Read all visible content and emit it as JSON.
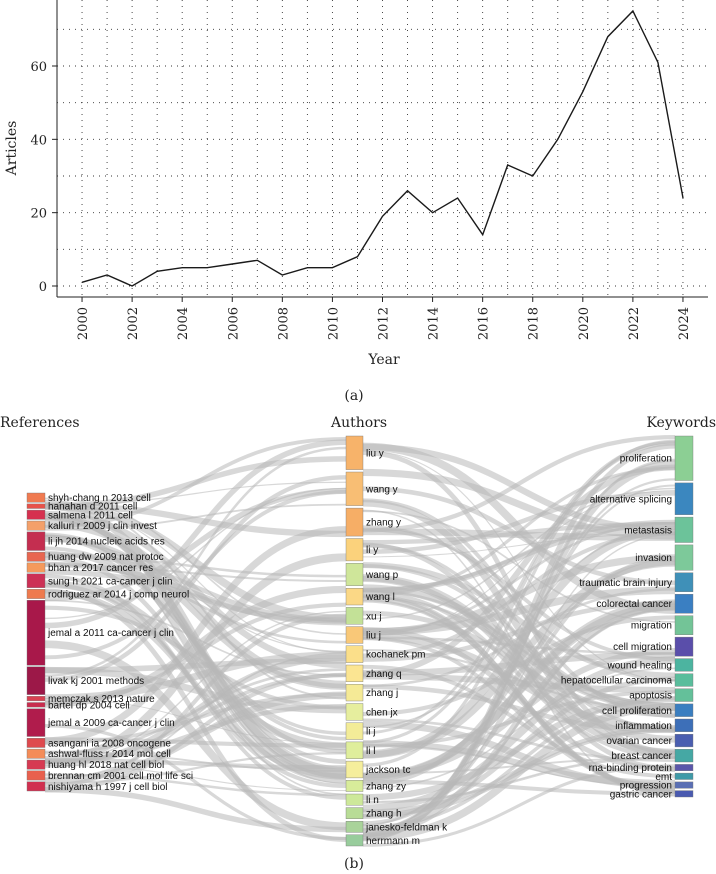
{
  "panel_a": {
    "caption": "(a)",
    "chart_data": {
      "type": "line",
      "x": [
        2000,
        2001,
        2002,
        2003,
        2004,
        2005,
        2006,
        2007,
        2008,
        2009,
        2010,
        2011,
        2012,
        2013,
        2014,
        2015,
        2016,
        2017,
        2018,
        2019,
        2020,
        2021,
        2022,
        2023,
        2024
      ],
      "values": [
        1,
        3,
        0,
        4,
        5,
        5,
        6,
        7,
        3,
        5,
        5,
        8,
        19,
        26,
        20,
        24,
        14,
        33,
        30,
        40,
        53,
        68,
        75,
        61,
        24
      ],
      "xticks": [
        "2000",
        "2002",
        "2004",
        "2006",
        "2008",
        "2010",
        "2012",
        "2014",
        "2016",
        "2018",
        "2020",
        "2022",
        "2024"
      ],
      "yticks": [
        "0",
        "20",
        "40",
        "60"
      ],
      "xlabel": "Year",
      "ylabel": "Articles",
      "xlim": [
        1999,
        2025
      ],
      "ylim": [
        -3,
        78
      ],
      "grid": "dotted"
    }
  },
  "panel_b": {
    "caption": "(b)",
    "chart_data": {
      "type": "sankey",
      "column_titles": [
        "References",
        "Authors",
        "Keywords"
      ],
      "references": [
        {
          "label": "shyh-chang n 2013 cell",
          "weight": 2,
          "color": "#f07a50"
        },
        {
          "label": "hanahan d 2011 cell",
          "weight": 1,
          "color": "#e8524a"
        },
        {
          "label": "salmena l 2011 cell",
          "weight": 2,
          "color": "#d6304f"
        },
        {
          "label": "kalluri r 2009 j clin invest",
          "weight": 2,
          "color": "#f4a06a"
        },
        {
          "label": "li jh 2014 nucleic acids res",
          "weight": 4,
          "color": "#c42e50"
        },
        {
          "label": "huang dw 2009 nat protoc",
          "weight": 2,
          "color": "#e86650"
        },
        {
          "label": "bhan a 2017 cancer res",
          "weight": 2,
          "color": "#f59a5c"
        },
        {
          "label": "sung h 2021 ca-cancer j clin",
          "weight": 3,
          "color": "#cc3055"
        },
        {
          "label": "rodriguez ar 2014 j comp neurol",
          "weight": 2,
          "color": "#ee7a4e"
        },
        {
          "label": "jemal a 2011 ca-cancer j clin",
          "weight": 14,
          "color": "#a8184a"
        },
        {
          "label": "livak kj 2001 methods",
          "weight": 6,
          "color": "#9c1848"
        },
        {
          "label": "memczak s 2013 nature",
          "weight": 1,
          "color": "#d94152"
        },
        {
          "label": "bartel dp 2004 cell",
          "weight": 1,
          "color": "#c92c4e"
        },
        {
          "label": "jemal a 2009 ca-cancer j clin",
          "weight": 6,
          "color": "#b01c4c"
        },
        {
          "label": "asangani ia 2008 oncogene",
          "weight": 2,
          "color": "#de4a4e"
        },
        {
          "label": "ashwal-fluss r 2014 mol cell",
          "weight": 2,
          "color": "#f48c58"
        },
        {
          "label": "huang hl 2018 nat cell biol",
          "weight": 2,
          "color": "#d63a52"
        },
        {
          "label": "brennan cm 2001 cell mol life sci",
          "weight": 2,
          "color": "#e8604e"
        },
        {
          "label": "nishiyama h 1997 j cell biol",
          "weight": 2,
          "color": "#d03050"
        }
      ],
      "authors": [
        {
          "label": "liu y",
          "weight": 6,
          "color": "#f7b36a"
        },
        {
          "label": "wang y",
          "weight": 6,
          "color": "#f8be74"
        },
        {
          "label": "zhang y",
          "weight": 5,
          "color": "#f6ae66"
        },
        {
          "label": "li y",
          "weight": 4,
          "color": "#fbd27c"
        },
        {
          "label": "wang p",
          "weight": 4,
          "color": "#cfe69a"
        },
        {
          "label": "wang l",
          "weight": 3,
          "color": "#fbd886"
        },
        {
          "label": "xu j",
          "weight": 3,
          "color": "#c3e197"
        },
        {
          "label": "liu j",
          "weight": 3,
          "color": "#f9c878"
        },
        {
          "label": "kochanek pm",
          "weight": 3,
          "color": "#fbdf8a"
        },
        {
          "label": "zhang q",
          "weight": 3,
          "color": "#fbe592"
        },
        {
          "label": "zhang j",
          "weight": 3,
          "color": "#f5ea96"
        },
        {
          "label": "chen jx",
          "weight": 3,
          "color": "#e6ee9e"
        },
        {
          "label": "li j",
          "weight": 3,
          "color": "#f3ec98"
        },
        {
          "label": "li l",
          "weight": 3,
          "color": "#dfee9c"
        },
        {
          "label": "jackson tc",
          "weight": 3,
          "color": "#f5ee9c"
        },
        {
          "label": "zhang zy",
          "weight": 2,
          "color": "#d8ec9a"
        },
        {
          "label": "li n",
          "weight": 2,
          "color": "#cde89a"
        },
        {
          "label": "zhang h",
          "weight": 2,
          "color": "#b8dc96"
        },
        {
          "label": "janesko-feldman k",
          "weight": 2,
          "color": "#a9d39a"
        },
        {
          "label": "herrmann m",
          "weight": 2,
          "color": "#98cc9c"
        }
      ],
      "keywords": [
        {
          "label": "proliferation",
          "weight": 7,
          "color": "#8ccf94"
        },
        {
          "label": "alternative splicing",
          "weight": 5,
          "color": "#3b87bf"
        },
        {
          "label": "metastasis",
          "weight": 4,
          "color": "#6cc39a"
        },
        {
          "label": "invasion",
          "weight": 4,
          "color": "#7dc99a"
        },
        {
          "label": "traumatic brain injury",
          "weight": 3,
          "color": "#3f90b8"
        },
        {
          "label": "colorectal cancer",
          "weight": 3,
          "color": "#3a7fc2"
        },
        {
          "label": "migration",
          "weight": 3,
          "color": "#73c497"
        },
        {
          "label": "cell migration",
          "weight": 3,
          "color": "#5a4eaa"
        },
        {
          "label": "wound healing",
          "weight": 2,
          "color": "#4cb4a0"
        },
        {
          "label": "hepatocellular carcinoma",
          "weight": 2,
          "color": "#5abd9c"
        },
        {
          "label": "apoptosis",
          "weight": 2,
          "color": "#64c09a"
        },
        {
          "label": "cell proliferation",
          "weight": 2,
          "color": "#3a7ec0"
        },
        {
          "label": "inflammation",
          "weight": 2,
          "color": "#3d6fb8"
        },
        {
          "label": "ovarian cancer",
          "weight": 2,
          "color": "#4a5eb0"
        },
        {
          "label": "breast cancer",
          "weight": 2,
          "color": "#45a8a4"
        },
        {
          "label": "rna-binding protein",
          "weight": 1,
          "color": "#5a56aa"
        },
        {
          "label": "emt",
          "weight": 1,
          "color": "#3e9aa8"
        },
        {
          "label": "progression",
          "weight": 1,
          "color": "#5a6fb4"
        },
        {
          "label": "gastric cancer",
          "weight": 1,
          "color": "#4a5ab0"
        }
      ],
      "link_color": "#b8b8b8"
    }
  }
}
